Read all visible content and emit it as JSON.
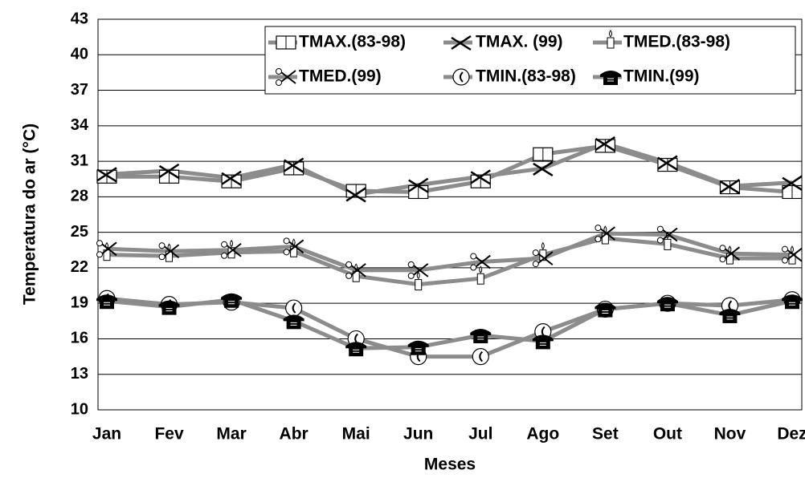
{
  "chart_data": {
    "type": "line",
    "x_label": "Meses",
    "y_label": "Temperatura do ar (°C)",
    "categories": [
      "Jan",
      "Fev",
      "Mar",
      "Abr",
      "Mai",
      "Jun",
      "Jul",
      "Ago",
      "Set",
      "Out",
      "Nov",
      "Dez"
    ],
    "ylim": [
      10,
      43
    ],
    "yticks": [
      10,
      13,
      16,
      19,
      22,
      25,
      28,
      31,
      34,
      37,
      40,
      43
    ],
    "grid": true,
    "legend": "top-right",
    "series": [
      {
        "name": "TMAX.(83-98)",
        "color": "#8c8c8c",
        "values": [
          29.7,
          29.7,
          29.3,
          30.4,
          28.5,
          28.4,
          29.3,
          31.6,
          32.3,
          30.7,
          28.8,
          28.4
        ]
      },
      {
        "name": "TMAX. (99)",
        "color": "#8c8c8c",
        "values": [
          29.9,
          30.2,
          29.6,
          30.7,
          28.2,
          29.0,
          29.7,
          30.4,
          32.5,
          30.9,
          28.9,
          29.2
        ]
      },
      {
        "name": "TMED.(83-98)",
        "color": "#8c8c8c",
        "values": [
          23.1,
          23.0,
          23.3,
          23.4,
          21.3,
          20.6,
          21.1,
          23.1,
          24.5,
          24.0,
          22.8,
          22.8
        ]
      },
      {
        "name": "TMED.(99)",
        "color": "#8c8c8c",
        "values": [
          23.6,
          23.4,
          23.5,
          23.8,
          21.8,
          21.8,
          22.5,
          22.8,
          24.9,
          24.8,
          23.2,
          23.1
        ]
      },
      {
        "name": "TMIN.(83-98)",
        "color": "#8c8c8c",
        "values": [
          19.4,
          18.9,
          19.1,
          18.6,
          16.0,
          14.5,
          14.5,
          16.6,
          18.5,
          19.0,
          18.8,
          19.3
        ]
      },
      {
        "name": "TMIN.(99)",
        "color": "#8c8c8c",
        "values": [
          19.2,
          18.7,
          19.3,
          17.5,
          15.2,
          15.3,
          16.3,
          15.8,
          18.5,
          19.0,
          18.0,
          19.2
        ]
      }
    ]
  }
}
